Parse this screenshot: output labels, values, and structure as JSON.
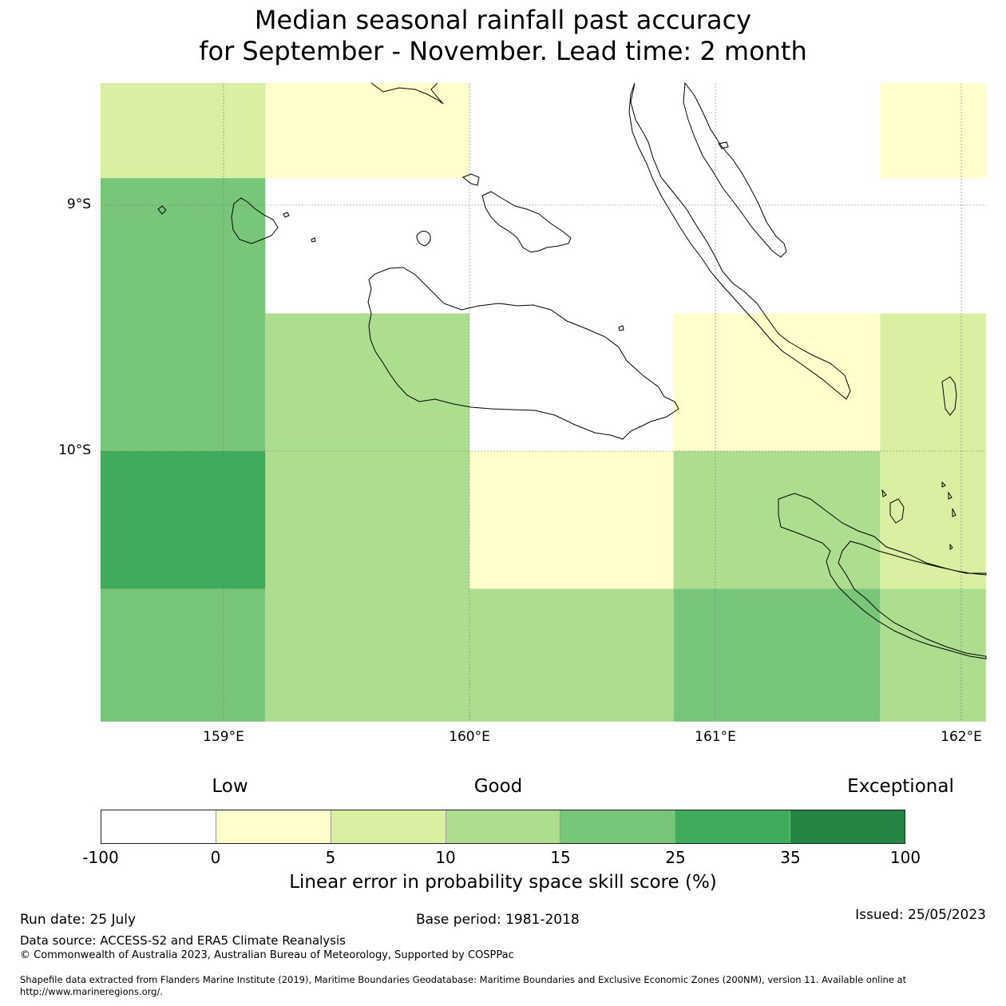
{
  "title": {
    "line1": "Median seasonal rainfall past accuracy",
    "line2": "for September - November. Lead time: 2 month"
  },
  "map": {
    "x_ticks": [
      "159°E",
      "160°E",
      "161°E",
      "162°E"
    ],
    "y_ticks": [
      "9°S",
      "10°S"
    ],
    "grid_cells": [
      {
        "lon": [
          158.5,
          159.17
        ],
        "lat": [
          -8.5,
          -8.89
        ],
        "category": "5-10",
        "color": "#d9f0a3"
      },
      {
        "lon": [
          159.17,
          160.0
        ],
        "lat": [
          -8.5,
          -8.89
        ],
        "category": "0-5",
        "color": "#ffffcc"
      },
      {
        "lon": [
          161.67,
          162.1
        ],
        "lat": [
          -8.5,
          -8.89
        ],
        "category": "0-5",
        "color": "#ffffcc"
      },
      {
        "lon": [
          158.5,
          159.17
        ],
        "lat": [
          -8.89,
          -10.0
        ],
        "category": "15-25",
        "color": "#78c679"
      },
      {
        "lon": [
          159.17,
          160.0
        ],
        "lat": [
          -9.44,
          -10.0
        ],
        "category": "10-15",
        "color": "#addd8e"
      },
      {
        "lon": [
          160.83,
          161.67
        ],
        "lat": [
          -9.44,
          -10.0
        ],
        "category": "0-5",
        "color": "#ffffcc"
      },
      {
        "lon": [
          161.67,
          162.1
        ],
        "lat": [
          -9.44,
          -10.0
        ],
        "category": "5-10",
        "color": "#d9f0a3"
      },
      {
        "lon": [
          158.5,
          159.17
        ],
        "lat": [
          -10.0,
          -10.56
        ],
        "category": "25-35",
        "color": "#41ab5d"
      },
      {
        "lon": [
          159.17,
          160.0
        ],
        "lat": [
          -10.0,
          -10.56
        ],
        "category": "10-15",
        "color": "#addd8e"
      },
      {
        "lon": [
          160.0,
          160.83
        ],
        "lat": [
          -10.0,
          -10.56
        ],
        "category": "0-5",
        "color": "#ffffcc"
      },
      {
        "lon": [
          160.83,
          161.67
        ],
        "lat": [
          -10.0,
          -10.56
        ],
        "category": "10-15",
        "color": "#addd8e"
      },
      {
        "lon": [
          161.67,
          162.1
        ],
        "lat": [
          -10.0,
          -10.56
        ],
        "category": "5-10",
        "color": "#d9f0a3"
      },
      {
        "lon": [
          158.5,
          159.17
        ],
        "lat": [
          -10.56,
          -11.1
        ],
        "category": "15-25",
        "color": "#78c679"
      },
      {
        "lon": [
          159.17,
          160.0
        ],
        "lat": [
          -10.56,
          -11.1
        ],
        "category": "10-15",
        "color": "#addd8e"
      },
      {
        "lon": [
          160.0,
          160.83
        ],
        "lat": [
          -10.56,
          -11.1
        ],
        "category": "10-15",
        "color": "#addd8e"
      },
      {
        "lon": [
          160.83,
          161.67
        ],
        "lat": [
          -10.56,
          -11.1
        ],
        "category": "15-25",
        "color": "#78c679"
      },
      {
        "lon": [
          161.67,
          162.1
        ],
        "lat": [
          -10.56,
          -11.1
        ],
        "category": "10-15",
        "color": "#addd8e"
      }
    ]
  },
  "legend": {
    "categories": [
      "Low",
      "Good",
      "Exceptional"
    ],
    "colors": [
      "#ffffff",
      "#ffffcc",
      "#d9f0a3",
      "#addd8e",
      "#78c679",
      "#41ab5d",
      "#238443"
    ],
    "ticks": [
      "-100",
      "0",
      "5",
      "10",
      "15",
      "25",
      "35",
      "100"
    ],
    "label": "Linear error in probability space skill score (%)"
  },
  "footer": {
    "run_date": "Run date: 25 July",
    "base_period": "Base period: 1981-2018",
    "issued": "Issued: 25/05/2023",
    "data_source": "Data source: ACCESS-S2 and ERA5 Climate Reanalysis",
    "copyright": "© Commonwealth of Australia 2023, Australian Bureau of Meteorology, Supported by COSPPac",
    "shapefile_line1": "Shapefile data extracted from Flanders Marine Institute (2019), Maritime Boundaries Geodatabase: Maritime Boundaries and Exclusive Economic Zones (200NM), version 11. Available online at",
    "shapefile_line2": "http://www.marineregions.org/."
  }
}
